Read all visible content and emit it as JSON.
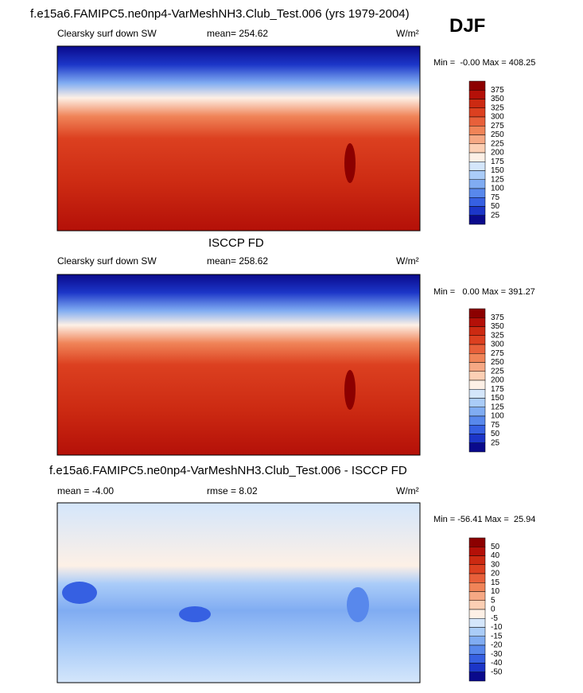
{
  "title": "f.e15a6.FAMIPC5.ne0np4-VarMeshNH3.Club_Test.006 (yrs 1979-2004)",
  "season": "DJF",
  "panels": [
    {
      "heading": null,
      "label": "Clearsky surf down SW",
      "stat1": "mean= 254.62",
      "stat2": null,
      "units": "W/m²",
      "minmax": "Min =  -0.00 Max = 408.25",
      "colorbar": {
        "labels": [
          "375",
          "350",
          "325",
          "300",
          "275",
          "250",
          "225",
          "200",
          "175",
          "150",
          "125",
          "100",
          "75",
          "50",
          "25"
        ],
        "colors": [
          "#8c0000",
          "#b41008",
          "#cc2a12",
          "#dc4020",
          "#e8603a",
          "#f08458",
          "#f6a884",
          "#fccfb4",
          "#fdf0e6",
          "#d4e6fb",
          "#aaccf8",
          "#80acf2",
          "#5888ec",
          "#3660e2",
          "#1c36c8",
          "#0a0a8c"
        ]
      }
    },
    {
      "heading": "ISCCP FD",
      "label": "Clearsky surf down SW",
      "stat1": "mean= 258.62",
      "stat2": null,
      "units": "W/m²",
      "minmax": "Min =   0.00 Max = 391.27",
      "colorbar": {
        "labels": [
          "375",
          "350",
          "325",
          "300",
          "275",
          "250",
          "225",
          "200",
          "175",
          "150",
          "125",
          "100",
          "75",
          "50",
          "25"
        ],
        "colors": [
          "#8c0000",
          "#b41008",
          "#cc2a12",
          "#dc4020",
          "#e8603a",
          "#f08458",
          "#f6a884",
          "#fccfb4",
          "#fdf0e6",
          "#d4e6fb",
          "#aaccf8",
          "#80acf2",
          "#5888ec",
          "#3660e2",
          "#1c36c8",
          "#0a0a8c"
        ]
      }
    },
    {
      "heading": "f.e15a6.FAMIPC5.ne0np4-VarMeshNH3.Club_Test.006 - ISCCP FD",
      "label": null,
      "stat1": "mean = -4.00",
      "stat2": "rmse =   8.02",
      "units": "W/m²",
      "minmax": "Min = -56.41 Max =  25.94",
      "colorbar": {
        "labels": [
          "50",
          "40",
          "30",
          "20",
          "15",
          "10",
          "5",
          "0",
          "-5",
          "-10",
          "-15",
          "-20",
          "-30",
          "-40",
          "-50"
        ],
        "colors": [
          "#8c0000",
          "#b41008",
          "#cc2a12",
          "#dc4020",
          "#e8603a",
          "#f08458",
          "#f6a884",
          "#fccfb4",
          "#fdf0e6",
          "#d4e6fb",
          "#aaccf8",
          "#80acf2",
          "#5888ec",
          "#3660e2",
          "#1c36c8",
          "#0a0a8c"
        ]
      }
    }
  ]
}
